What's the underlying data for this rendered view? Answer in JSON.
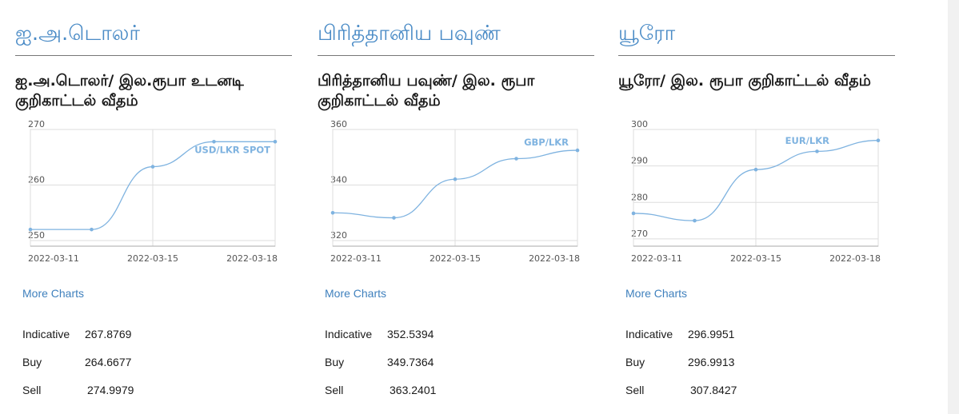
{
  "panels": [
    {
      "heading": "ஐ.அ.டொலர்",
      "subtitle": "ஐ.அ.டொலர்/ இல.ரூபா உடனடி குறிகாட்டல் வீதம்",
      "more_charts": "More Charts",
      "rates": [
        {
          "label": "Indicative",
          "value": "267.8769"
        },
        {
          "label": "Buy",
          "value": "264.6677"
        },
        {
          "label": "Sell",
          "value": "274.9979"
        }
      ]
    },
    {
      "heading": "பிரித்தானிய பவுண்",
      "subtitle": "பிரித்தானிய பவுண்/ இல. ரூபா குறிகாட்டல் வீதம்",
      "more_charts": "More Charts",
      "rates": [
        {
          "label": "Indicative",
          "value": "352.5394"
        },
        {
          "label": "Buy",
          "value": "349.7364"
        },
        {
          "label": "Sell",
          "value": "363.2401"
        }
      ]
    },
    {
      "heading": "யூரோ",
      "subtitle": "யூரோ/ இல. ரூபா குறிகாட்டல் வீதம்",
      "more_charts": "More Charts",
      "rates": [
        {
          "label": "Indicative",
          "value": "296.9951"
        },
        {
          "label": "Buy",
          "value": "296.9913"
        },
        {
          "label": "Sell",
          "value": "307.8427"
        }
      ]
    }
  ],
  "colors": {
    "line": "#7fb3e0",
    "heading": "#4a8bc6",
    "link": "#3f80bd",
    "grid": "#dddddd"
  },
  "chart_data": [
    {
      "type": "line",
      "series": [
        {
          "name": "USD/LKR SPOT",
          "x": [
            0,
            2,
            4,
            6,
            8
          ],
          "y": [
            252.0,
            252.0,
            263.3,
            267.8,
            267.8
          ]
        }
      ],
      "x_tick_labels": [
        "2022-03-11",
        "2022-03-15",
        "2022-03-18"
      ],
      "y_ticks": [
        250,
        260,
        270
      ],
      "ylim": [
        249,
        270
      ],
      "xlim": [
        0,
        8
      ],
      "grid": true,
      "legend": "top-right"
    },
    {
      "type": "line",
      "series": [
        {
          "name": "GBP/LKR",
          "x": [
            0,
            2,
            4,
            6,
            8
          ],
          "y": [
            330.0,
            328.2,
            342.1,
            349.5,
            352.5
          ]
        }
      ],
      "x_tick_labels": [
        "2022-03-11",
        "2022-03-15",
        "2022-03-18"
      ],
      "y_ticks": [
        320,
        340,
        360
      ],
      "ylim": [
        318,
        360
      ],
      "xlim": [
        0,
        8
      ],
      "grid": true,
      "legend": "top-right"
    },
    {
      "type": "line",
      "series": [
        {
          "name": "EUR/LKR",
          "x": [
            0,
            2,
            4,
            6,
            8
          ],
          "y": [
            277.0,
            275.0,
            289.0,
            294.0,
            297.0
          ]
        }
      ],
      "x_tick_labels": [
        "2022-03-11",
        "2022-03-15",
        "2022-03-18"
      ],
      "y_ticks": [
        270,
        280,
        290,
        300
      ],
      "ylim": [
        268,
        300
      ],
      "xlim": [
        0,
        8
      ],
      "grid": true,
      "legend": "top-right"
    }
  ]
}
